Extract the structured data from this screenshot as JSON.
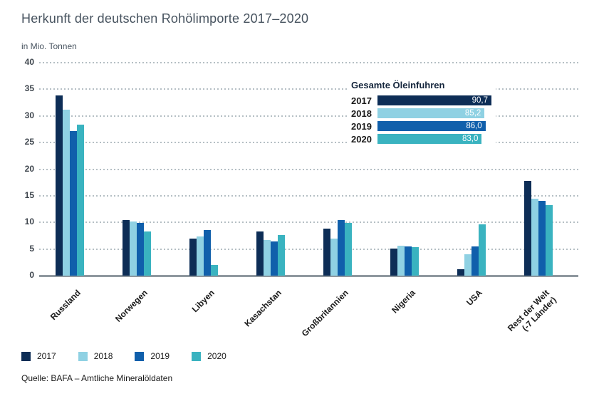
{
  "title": "Herkunft der deutschen Rohölimporte 2017–2020",
  "unit_label": "in Mio. Tonnen",
  "source": "Quelle: BAFA – Amtliche Mineralöldaten",
  "inset": {
    "title": "Gesamte Öleinfuhren",
    "rows": [
      {
        "year": "2017",
        "value": 90.7,
        "value_label": "90,7",
        "color": "#0d2d56"
      },
      {
        "year": "2018",
        "value": 85.2,
        "value_label": "85,2",
        "color": "#8fd1e3"
      },
      {
        "year": "2019",
        "value": 86.0,
        "value_label": "86,0",
        "color": "#105fab"
      },
      {
        "year": "2020",
        "value": 83.0,
        "value_label": "83,0",
        "color": "#3ab3c0"
      }
    ]
  },
  "legend": [
    {
      "label": "2017",
      "color": "#0d2d56"
    },
    {
      "label": "2018",
      "color": "#8fd1e3"
    },
    {
      "label": "2019",
      "color": "#105fab"
    },
    {
      "label": "2020",
      "color": "#3ab3c0"
    }
  ],
  "chart_data": {
    "type": "bar",
    "title": "Herkunft der deutschen Rohölimporte 2017–2020",
    "ylabel": "in Mio. Tonnen",
    "ylim": [
      0,
      40
    ],
    "yticks": [
      0,
      5,
      10,
      15,
      20,
      25,
      30,
      35,
      40
    ],
    "grid": "horizontal-dotted",
    "legend_position": "bottom",
    "categories": [
      "Russland",
      "Norwegen",
      "Libyen",
      "Kasachstan",
      "Großbritannien",
      "Nigeria",
      "USA",
      "Rest der Welt (-7 Länder)"
    ],
    "category_lines": [
      [
        "Russland"
      ],
      [
        "Norwegen"
      ],
      [
        "Libyen"
      ],
      [
        "Kasachstan"
      ],
      [
        "Großbritannien"
      ],
      [
        "Nigeria"
      ],
      [
        "USA"
      ],
      [
        "Rest der Welt",
        "(-7 Länder)"
      ]
    ],
    "series": [
      {
        "name": "2017",
        "color": "#0d2d56",
        "values": [
          33.8,
          10.5,
          7.0,
          8.3,
          8.8,
          5.1,
          1.2,
          17.8
        ]
      },
      {
        "name": "2018",
        "color": "#8fd1e3",
        "values": [
          31.2,
          10.2,
          7.3,
          6.7,
          7.0,
          5.6,
          4.0,
          14.4
        ]
      },
      {
        "name": "2019",
        "color": "#105fab",
        "values": [
          27.2,
          9.9,
          8.5,
          6.4,
          10.4,
          5.5,
          5.5,
          14.0
        ]
      },
      {
        "name": "2020",
        "color": "#3ab3c0",
        "values": [
          28.4,
          8.3,
          2.0,
          7.6,
          9.9,
          5.4,
          9.6,
          13.3
        ]
      }
    ],
    "totals_inset": {
      "title": "Gesamte Öleinfuhren",
      "values": {
        "2017": 90.7,
        "2018": 85.2,
        "2019": 86.0,
        "2020": 83.0
      }
    }
  },
  "style_colors": {
    "axis": "#8f989f",
    "grid_dots": "#b5bfc4",
    "title_text": "#47535f",
    "body_text": "#1a1a1a"
  }
}
